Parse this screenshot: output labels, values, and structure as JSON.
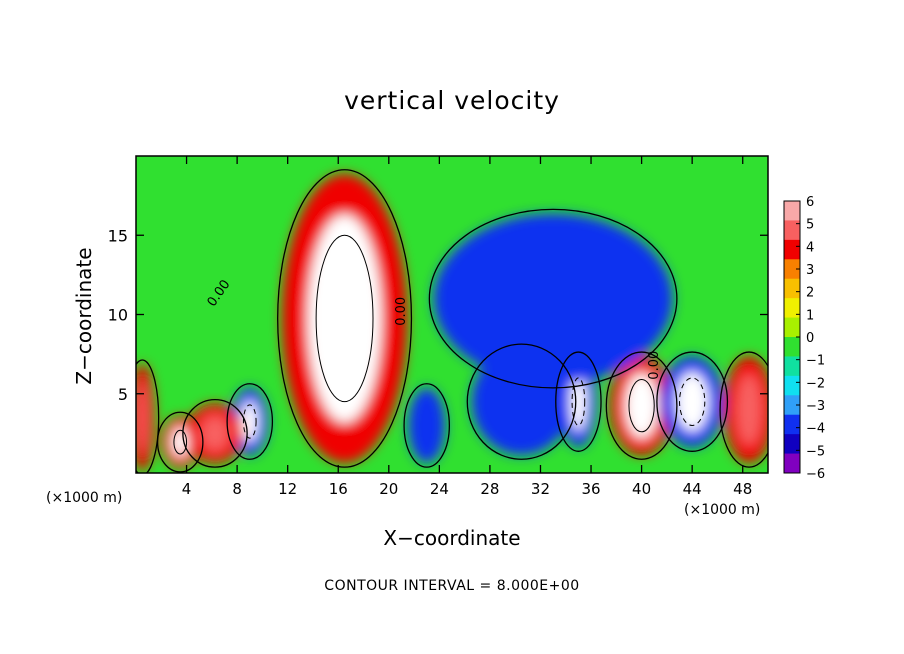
{
  "chart_data": {
    "type": "heatmap",
    "title": "vertical velocity",
    "xlabel": "X−coordinate",
    "ylabel": "Z−coordinate",
    "x_unit_label_left": "(×1000 m)",
    "x_unit_label_right": "(×1000 m)",
    "xlim": [
      0,
      50
    ],
    "ylim": [
      0,
      20
    ],
    "x_ticks": [
      4,
      8,
      12,
      16,
      20,
      24,
      28,
      32,
      36,
      40,
      44,
      48
    ],
    "x_tick_labels": [
      "4",
      "8",
      "12",
      "16",
      "20",
      "24",
      "28",
      "32",
      "36",
      "40",
      "44",
      "48"
    ],
    "y_ticks": [
      5,
      10,
      15
    ],
    "y_tick_labels": [
      "5",
      "10",
      "15"
    ],
    "contour_interval_text": "CONTOUR INTERVAL = 8.000E+00",
    "contour_labels": [
      {
        "text": "0.00",
        "x": 6.8,
        "y": 11.2,
        "rotation": -55
      },
      {
        "text": "0.00",
        "x": 21.3,
        "y": 10.2,
        "rotation": -90
      },
      {
        "text": "0.00",
        "x": 41.3,
        "y": 6.8,
        "rotation": -90
      }
    ],
    "colorbar": {
      "ticks": [
        6,
        5,
        4,
        3,
        2,
        1,
        0,
        -1,
        -2,
        -3,
        -4,
        -5,
        -6
      ],
      "tick_labels": [
        "6",
        "5",
        "4",
        "3",
        "2",
        "1",
        "0",
        "−1",
        "−2",
        "−3",
        "−4",
        "−5",
        "−6"
      ],
      "colors": [
        "#f8a8a8",
        "#f86060",
        "#f00000",
        "#f88000",
        "#f8c000",
        "#f0f000",
        "#a8f000",
        "#30e030",
        "#10e0a0",
        "#10e0f0",
        "#30a0f8",
        "#1030f0",
        "#1000c0",
        "#8000c0"
      ]
    },
    "cells": [
      {
        "x": 8,
        "y": 1.5,
        "w": 2,
        "h": 3.5,
        "value": -6
      },
      {
        "x": 2.5,
        "y": 0.7,
        "w": 2,
        "h": 2.5,
        "value": 6
      },
      {
        "x": 0,
        "y": 0.5,
        "w": 1,
        "h": 6,
        "value": 5
      },
      {
        "x": 4.5,
        "y": 1,
        "w": 3.5,
        "h": 3,
        "value": 5
      },
      {
        "x": 12,
        "y": 1,
        "w": 9,
        "h": 17.5,
        "value": 6
      },
      {
        "x": 22,
        "y": 1,
        "w": 2,
        "h": 4,
        "value": -5
      },
      {
        "x": 27,
        "y": 1.5,
        "w": 7,
        "h": 6,
        "value": -5
      },
      {
        "x": 34,
        "y": 2,
        "w": 2,
        "h": 5,
        "value": -6
      },
      {
        "x": 38,
        "y": 1.5,
        "w": 4,
        "h": 5.5,
        "value": 6
      },
      {
        "x": 42,
        "y": 2,
        "w": 4,
        "h": 5,
        "value": -6
      },
      {
        "x": 47,
        "y": 1,
        "w": 3,
        "h": 6,
        "value": 5
      },
      {
        "x": 24,
        "y": 6,
        "w": 18,
        "h": 10,
        "value": -5
      }
    ]
  }
}
